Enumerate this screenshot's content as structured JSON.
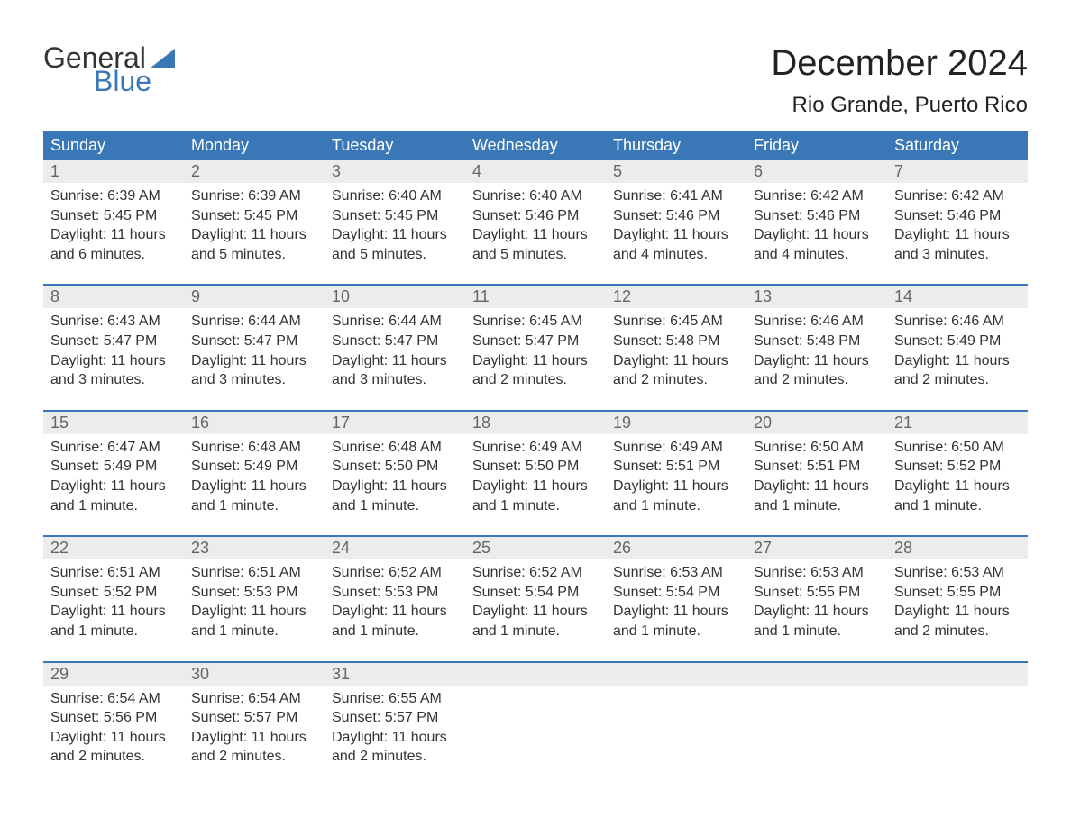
{
  "logo": {
    "text1": "General",
    "text2": "Blue"
  },
  "title": "December 2024",
  "location": "Rio Grande, Puerto Rico",
  "colors": {
    "accent": "#3a77b7",
    "header_text": "#ffffff",
    "daynum_bg": "#ececec",
    "daynum_text": "#666666",
    "body_text": "#333333",
    "background": "#ffffff"
  },
  "typography": {
    "title_fontsize": 40,
    "location_fontsize": 24,
    "header_fontsize": 18,
    "daynum_fontsize": 18,
    "body_fontsize": 16
  },
  "day_names": [
    "Sunday",
    "Monday",
    "Tuesday",
    "Wednesday",
    "Thursday",
    "Friday",
    "Saturday"
  ],
  "weeks": [
    [
      {
        "n": "1",
        "sunrise": "Sunrise: 6:39 AM",
        "sunset": "Sunset: 5:45 PM",
        "d1": "Daylight: 11 hours",
        "d2": "and 6 minutes."
      },
      {
        "n": "2",
        "sunrise": "Sunrise: 6:39 AM",
        "sunset": "Sunset: 5:45 PM",
        "d1": "Daylight: 11 hours",
        "d2": "and 5 minutes."
      },
      {
        "n": "3",
        "sunrise": "Sunrise: 6:40 AM",
        "sunset": "Sunset: 5:45 PM",
        "d1": "Daylight: 11 hours",
        "d2": "and 5 minutes."
      },
      {
        "n": "4",
        "sunrise": "Sunrise: 6:40 AM",
        "sunset": "Sunset: 5:46 PM",
        "d1": "Daylight: 11 hours",
        "d2": "and 5 minutes."
      },
      {
        "n": "5",
        "sunrise": "Sunrise: 6:41 AM",
        "sunset": "Sunset: 5:46 PM",
        "d1": "Daylight: 11 hours",
        "d2": "and 4 minutes."
      },
      {
        "n": "6",
        "sunrise": "Sunrise: 6:42 AM",
        "sunset": "Sunset: 5:46 PM",
        "d1": "Daylight: 11 hours",
        "d2": "and 4 minutes."
      },
      {
        "n": "7",
        "sunrise": "Sunrise: 6:42 AM",
        "sunset": "Sunset: 5:46 PM",
        "d1": "Daylight: 11 hours",
        "d2": "and 3 minutes."
      }
    ],
    [
      {
        "n": "8",
        "sunrise": "Sunrise: 6:43 AM",
        "sunset": "Sunset: 5:47 PM",
        "d1": "Daylight: 11 hours",
        "d2": "and 3 minutes."
      },
      {
        "n": "9",
        "sunrise": "Sunrise: 6:44 AM",
        "sunset": "Sunset: 5:47 PM",
        "d1": "Daylight: 11 hours",
        "d2": "and 3 minutes."
      },
      {
        "n": "10",
        "sunrise": "Sunrise: 6:44 AM",
        "sunset": "Sunset: 5:47 PM",
        "d1": "Daylight: 11 hours",
        "d2": "and 3 minutes."
      },
      {
        "n": "11",
        "sunrise": "Sunrise: 6:45 AM",
        "sunset": "Sunset: 5:47 PM",
        "d1": "Daylight: 11 hours",
        "d2": "and 2 minutes."
      },
      {
        "n": "12",
        "sunrise": "Sunrise: 6:45 AM",
        "sunset": "Sunset: 5:48 PM",
        "d1": "Daylight: 11 hours",
        "d2": "and 2 minutes."
      },
      {
        "n": "13",
        "sunrise": "Sunrise: 6:46 AM",
        "sunset": "Sunset: 5:48 PM",
        "d1": "Daylight: 11 hours",
        "d2": "and 2 minutes."
      },
      {
        "n": "14",
        "sunrise": "Sunrise: 6:46 AM",
        "sunset": "Sunset: 5:49 PM",
        "d1": "Daylight: 11 hours",
        "d2": "and 2 minutes."
      }
    ],
    [
      {
        "n": "15",
        "sunrise": "Sunrise: 6:47 AM",
        "sunset": "Sunset: 5:49 PM",
        "d1": "Daylight: 11 hours",
        "d2": "and 1 minute."
      },
      {
        "n": "16",
        "sunrise": "Sunrise: 6:48 AM",
        "sunset": "Sunset: 5:49 PM",
        "d1": "Daylight: 11 hours",
        "d2": "and 1 minute."
      },
      {
        "n": "17",
        "sunrise": "Sunrise: 6:48 AM",
        "sunset": "Sunset: 5:50 PM",
        "d1": "Daylight: 11 hours",
        "d2": "and 1 minute."
      },
      {
        "n": "18",
        "sunrise": "Sunrise: 6:49 AM",
        "sunset": "Sunset: 5:50 PM",
        "d1": "Daylight: 11 hours",
        "d2": "and 1 minute."
      },
      {
        "n": "19",
        "sunrise": "Sunrise: 6:49 AM",
        "sunset": "Sunset: 5:51 PM",
        "d1": "Daylight: 11 hours",
        "d2": "and 1 minute."
      },
      {
        "n": "20",
        "sunrise": "Sunrise: 6:50 AM",
        "sunset": "Sunset: 5:51 PM",
        "d1": "Daylight: 11 hours",
        "d2": "and 1 minute."
      },
      {
        "n": "21",
        "sunrise": "Sunrise: 6:50 AM",
        "sunset": "Sunset: 5:52 PM",
        "d1": "Daylight: 11 hours",
        "d2": "and 1 minute."
      }
    ],
    [
      {
        "n": "22",
        "sunrise": "Sunrise: 6:51 AM",
        "sunset": "Sunset: 5:52 PM",
        "d1": "Daylight: 11 hours",
        "d2": "and 1 minute."
      },
      {
        "n": "23",
        "sunrise": "Sunrise: 6:51 AM",
        "sunset": "Sunset: 5:53 PM",
        "d1": "Daylight: 11 hours",
        "d2": "and 1 minute."
      },
      {
        "n": "24",
        "sunrise": "Sunrise: 6:52 AM",
        "sunset": "Sunset: 5:53 PM",
        "d1": "Daylight: 11 hours",
        "d2": "and 1 minute."
      },
      {
        "n": "25",
        "sunrise": "Sunrise: 6:52 AM",
        "sunset": "Sunset: 5:54 PM",
        "d1": "Daylight: 11 hours",
        "d2": "and 1 minute."
      },
      {
        "n": "26",
        "sunrise": "Sunrise: 6:53 AM",
        "sunset": "Sunset: 5:54 PM",
        "d1": "Daylight: 11 hours",
        "d2": "and 1 minute."
      },
      {
        "n": "27",
        "sunrise": "Sunrise: 6:53 AM",
        "sunset": "Sunset: 5:55 PM",
        "d1": "Daylight: 11 hours",
        "d2": "and 1 minute."
      },
      {
        "n": "28",
        "sunrise": "Sunrise: 6:53 AM",
        "sunset": "Sunset: 5:55 PM",
        "d1": "Daylight: 11 hours",
        "d2": "and 2 minutes."
      }
    ],
    [
      {
        "n": "29",
        "sunrise": "Sunrise: 6:54 AM",
        "sunset": "Sunset: 5:56 PM",
        "d1": "Daylight: 11 hours",
        "d2": "and 2 minutes."
      },
      {
        "n": "30",
        "sunrise": "Sunrise: 6:54 AM",
        "sunset": "Sunset: 5:57 PM",
        "d1": "Daylight: 11 hours",
        "d2": "and 2 minutes."
      },
      {
        "n": "31",
        "sunrise": "Sunrise: 6:55 AM",
        "sunset": "Sunset: 5:57 PM",
        "d1": "Daylight: 11 hours",
        "d2": "and 2 minutes."
      },
      {
        "n": "",
        "sunrise": "",
        "sunset": "",
        "d1": "",
        "d2": ""
      },
      {
        "n": "",
        "sunrise": "",
        "sunset": "",
        "d1": "",
        "d2": ""
      },
      {
        "n": "",
        "sunrise": "",
        "sunset": "",
        "d1": "",
        "d2": ""
      },
      {
        "n": "",
        "sunrise": "",
        "sunset": "",
        "d1": "",
        "d2": ""
      }
    ]
  ]
}
